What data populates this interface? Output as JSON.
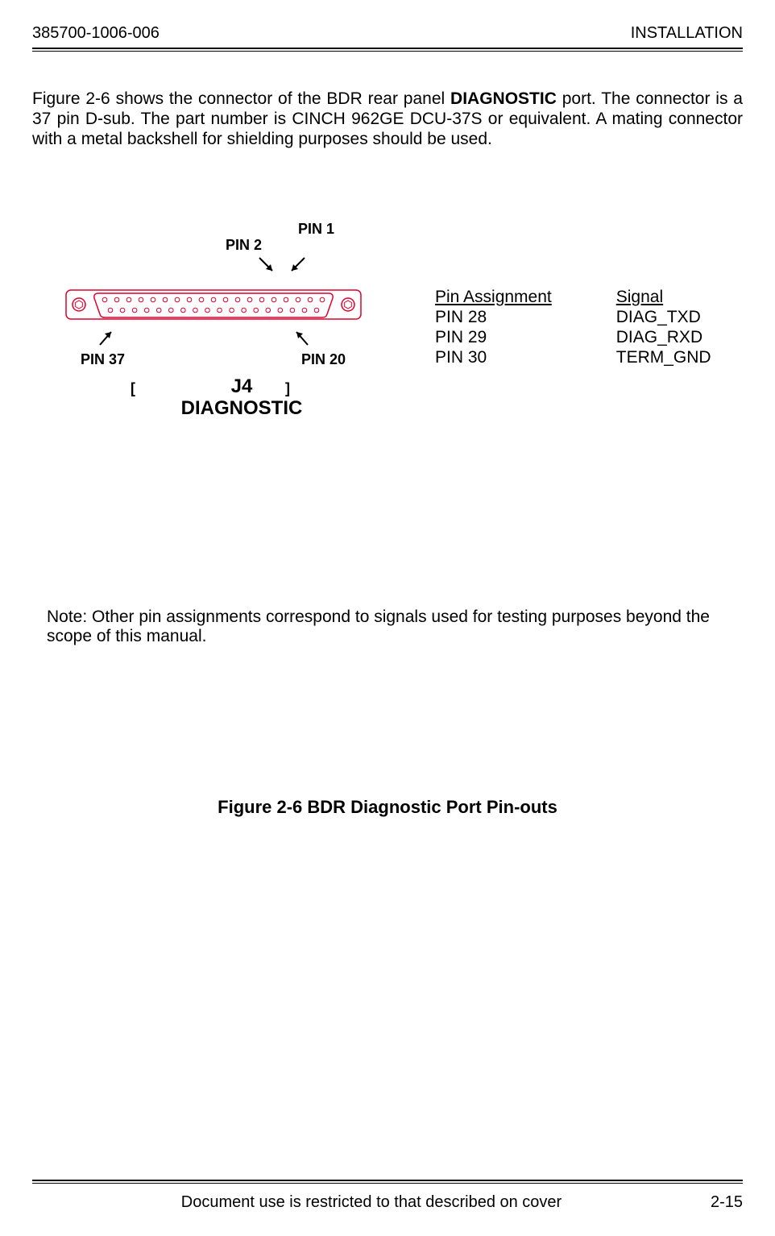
{
  "header": {
    "left": "385700-1006-006",
    "right": "INSTALLATION"
  },
  "intro": {
    "part1": "Figure 2-6 shows the connector of the BDR rear panel ",
    "bold": "DIAGNOSTIC",
    "part2": " port. The connector is a 37 pin D-sub. The part number is CINCH 962GE DCU-37S or equivalent.  A mating connector with a metal backshell for shielding purposes should be used."
  },
  "connector": {
    "pins": {
      "pin1": "PIN 1",
      "pin2": "PIN 2",
      "pin20": "PIN 20",
      "pin37": "PIN 37"
    },
    "label_line1": "J4",
    "label_line2": "DIAGNOSTIC",
    "outline_color": "#e2002b",
    "top_row_count": 19,
    "bottom_row_count": 18
  },
  "pin_table": {
    "col1_head": "Pin Assignment",
    "col2_head": "Signal",
    "rows": [
      {
        "pin": "PIN 28",
        "signal": "DIAG_TXD"
      },
      {
        "pin": "PIN 29",
        "signal": "DIAG_RXD"
      },
      {
        "pin": "PIN 30",
        "signal": "TERM_GND"
      }
    ]
  },
  "note": "Note:  Other pin assignments correspond to signals used for testing purposes beyond the scope of this manual.",
  "figure_caption": "Figure 2-6 BDR Diagnostic Port Pin-outs",
  "footer": {
    "center": "Document use is restricted to that described on cover",
    "right": "2-15"
  }
}
